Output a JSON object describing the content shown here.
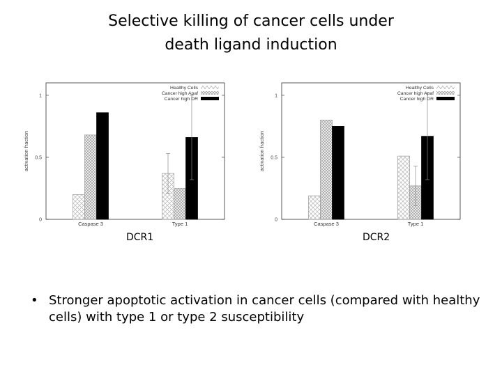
{
  "slide": {
    "title_line1": "Selective killing of cancer cells under",
    "title_line2": "death ligand induction",
    "bullet": "Stronger apoptotic activation in cancer cells (compared with healthy cells) with type 1 or type 2 susceptibility",
    "bullet_symbol": "•"
  },
  "chart_data": [
    {
      "type": "bar",
      "caption": "DCR1",
      "ylabel": "activation fraction",
      "categories": [
        "Caspase 3",
        "Type 1"
      ],
      "ylim": [
        0,
        1.1
      ],
      "yticks": [
        0,
        0.5,
        1
      ],
      "legend_position": "top-right",
      "grid": false,
      "series": [
        {
          "name": "Healthy Cells",
          "values": [
            0.2,
            0.37
          ],
          "errors": [
            null,
            0.16
          ],
          "fill": "hatch-light",
          "color": "#888888"
        },
        {
          "name": "Cancer high Apaf",
          "values": [
            0.68,
            0.25
          ],
          "errors": [
            null,
            null
          ],
          "fill": "crosshatch",
          "color": "#999999"
        },
        {
          "name": "Cancer high DR",
          "values": [
            0.86,
            0.66
          ],
          "errors": [
            null,
            0.34
          ],
          "fill": "solid",
          "color": "#000000"
        }
      ]
    },
    {
      "type": "bar",
      "caption": "DCR2",
      "ylabel": "activation fraction",
      "categories": [
        "Caspase 3",
        "Type 1"
      ],
      "ylim": [
        0,
        1.1
      ],
      "yticks": [
        0,
        0.5,
        1
      ],
      "legend_position": "top-right",
      "grid": false,
      "series": [
        {
          "name": "Healthy Cells",
          "values": [
            0.19,
            0.51
          ],
          "errors": [
            null,
            null
          ],
          "fill": "hatch-light",
          "color": "#888888"
        },
        {
          "name": "Cancer high Apaf",
          "values": [
            0.8,
            0.27
          ],
          "errors": [
            null,
            0.16
          ],
          "fill": "crosshatch",
          "color": "#999999"
        },
        {
          "name": "Cancer high DR",
          "values": [
            0.75,
            0.67
          ],
          "errors": [
            null,
            0.35
          ],
          "fill": "solid",
          "color": "#000000"
        }
      ]
    }
  ]
}
